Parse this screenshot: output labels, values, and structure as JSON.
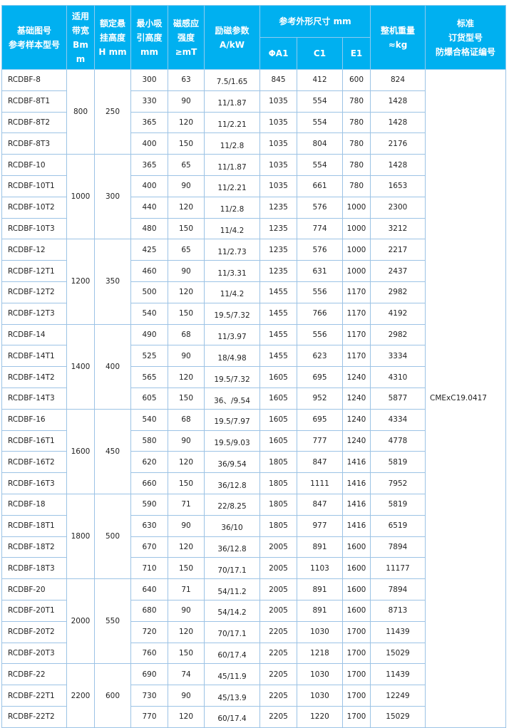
{
  "header": {
    "model": "基础图号\n参考样本型号",
    "bandwidth": "适用\n带宽\nBm\nm",
    "height": "额定悬\n挂高度\nH mm",
    "min_height": "最小吸\n引高度\nmm",
    "mt": "磁感应\n强度\n≥mT",
    "akw": "励磁参数\nA/kW",
    "dims": "参考外形尺寸  mm",
    "a1": "ΦA1",
    "c1": "C1",
    "e1": "E1",
    "weight": "整机重量\n≈kg",
    "cert": "标准\n订货型号\n防爆合格证编号"
  },
  "cert_value": "CMExC19.0417",
  "colors": {
    "header_bg": "#00b0f0",
    "border": "#9cc3e5"
  },
  "groups": [
    {
      "bandwidth": "800",
      "height": "250",
      "rows": [
        [
          "RCDBF-8",
          "300",
          "63",
          "7.5/1.65",
          "845",
          "412",
          "600",
          "824"
        ],
        [
          "RCDBF-8T1",
          "330",
          "90",
          "11/1.87",
          "1035",
          "554",
          "780",
          "1428"
        ],
        [
          "RCDBF-8T2",
          "365",
          "120",
          "11/2.21",
          "1035",
          "554",
          "780",
          "1428"
        ],
        [
          "RCDBF-8T3",
          "400",
          "150",
          "11/2.8",
          "1035",
          "804",
          "780",
          "2176"
        ]
      ]
    },
    {
      "bandwidth": "1000",
      "height": "300",
      "rows": [
        [
          "RCDBF-10",
          "365",
          "65",
          "11/1.87",
          "1035",
          "554",
          "780",
          "1428"
        ],
        [
          "RCDBF-10T1",
          "400",
          "90",
          "11/2.21",
          "1035",
          "661",
          "780",
          "1653"
        ],
        [
          "RCDBF-10T2",
          "440",
          "120",
          "11/2.8",
          "1235",
          "576",
          "1000",
          "2300"
        ],
        [
          "RCDBF-10T3",
          "480",
          "150",
          "11/4.2",
          "1235",
          "774",
          "1000",
          "3212"
        ]
      ]
    },
    {
      "bandwidth": "1200",
      "height": "350",
      "rows": [
        [
          "RCDBF-12",
          "425",
          "65",
          "11/2.73",
          "1235",
          "576",
          "1000",
          "2217"
        ],
        [
          "RCDBF-12T1",
          "460",
          "90",
          "11/3.31",
          "1235",
          "631",
          "1000",
          "2437"
        ],
        [
          "RCDBF-12T2",
          "500",
          "120",
          "11/4.2",
          "1455",
          "556",
          "1170",
          "2982"
        ],
        [
          "RCDBF-12T3",
          "540",
          "150",
          "19.5/7.32",
          "1455",
          "766",
          "1170",
          "4192"
        ]
      ]
    },
    {
      "bandwidth": "1400",
      "height": "400",
      "rows": [
        [
          "RCDBF-14",
          "490",
          "68",
          "11/3.97",
          "1455",
          "556",
          "1170",
          "2982"
        ],
        [
          "RCDBF-14T1",
          "525",
          "90",
          "18/4.98",
          "1455",
          "623",
          "1170",
          "3334"
        ],
        [
          "RCDBF-14T2",
          "565",
          "120",
          "19.5/7.32",
          "1605",
          "695",
          "1240",
          "4310"
        ],
        [
          "RCDBF-14T3",
          "605",
          "150",
          "36、/9.54",
          "1605",
          "952",
          "1240",
          "5877"
        ]
      ]
    },
    {
      "bandwidth": "1600",
      "height": "450",
      "rows": [
        [
          "RCDBF-16",
          "540",
          "68",
          "19.5/7.97",
          "1605",
          "695",
          "1240",
          "4334"
        ],
        [
          "RCDBF-16T1",
          "580",
          "90",
          "19.5/9.03",
          "1605",
          "777",
          "1240",
          "4778"
        ],
        [
          "RCDBF-16T2",
          "620",
          "120",
          "36/9.54",
          "1805",
          "847",
          "1416",
          "5819"
        ],
        [
          "RCDBF-16T3",
          "660",
          "150",
          "36/12.8",
          "1805",
          "1111",
          "1416",
          "7952"
        ]
      ]
    },
    {
      "bandwidth": "1800",
      "height": "500",
      "rows": [
        [
          "RCDBF-18",
          "590",
          "71",
          "22/8.25",
          "1805",
          "847",
          "1416",
          "5819"
        ],
        [
          "RCDBF-18T1",
          "630",
          "90",
          "36/10",
          "1805",
          "977",
          "1416",
          "6519"
        ],
        [
          "RCDBF-18T2",
          "670",
          "120",
          "36/12.8",
          "2005",
          "891",
          "1600",
          "7894"
        ],
        [
          "RCDBF-18T3",
          "710",
          "150",
          "70/17.1",
          "2005",
          "1103",
          "1600",
          "11177"
        ]
      ]
    },
    {
      "bandwidth": "2000",
      "height": "550",
      "rows": [
        [
          "RCDBF-20",
          "640",
          "71",
          "54/11.2",
          "2005",
          "891",
          "1600",
          "7894"
        ],
        [
          "RCDBF-20T1",
          "680",
          "90",
          "54/14.2",
          "2005",
          "891",
          "1600",
          "8713"
        ],
        [
          "RCDBF-20T2",
          "720",
          "120",
          "70/17.1",
          "2205",
          "1030",
          "1700",
          "11439"
        ],
        [
          "RCDBF-20T3",
          "760",
          "150",
          "60/17.4",
          "2205",
          "1218",
          "1700",
          "15029"
        ]
      ]
    },
    {
      "bandwidth": "2200",
      "height": "600",
      "rows": [
        [
          "RCDBF-22",
          "690",
          "74",
          "45/11.9",
          "2205",
          "1030",
          "1700",
          "11439"
        ],
        [
          "RCDBF-22T1",
          "730",
          "90",
          "45/13.9",
          "2205",
          "1030",
          "1700",
          "12249"
        ],
        [
          "RCDBF-22T2",
          "770",
          "120",
          "60/17.4",
          "2205",
          "1220",
          "1700",
          "15029"
        ]
      ]
    }
  ]
}
